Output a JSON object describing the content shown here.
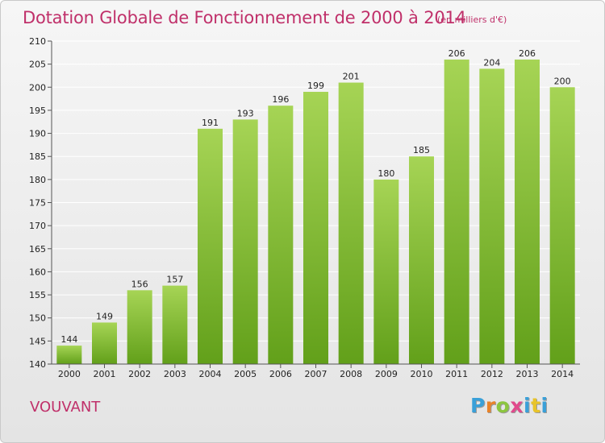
{
  "header": {
    "title": "Dotation Globale de Fonctionnement de 2000 à 2014",
    "unit": "(en milliers d'€)"
  },
  "footer": {
    "commune": "VOUVANT",
    "logo_letters": [
      "P",
      "r",
      "o",
      "x",
      "i",
      "t",
      "i"
    ],
    "logo_colors": [
      "#3aa0d8",
      "#e8832a",
      "#8cc63f",
      "#e14a8c",
      "#3aa0d8",
      "#e8c42a",
      "#3aa0d8"
    ]
  },
  "colors": {
    "title": "#c0306a",
    "bar_light": "#a6d455",
    "bar_dark": "#62a01a",
    "grid": "#ffffff"
  },
  "chart_data": {
    "type": "bar",
    "title": "Dotation Globale de Fonctionnement de 2000 à 2014",
    "subtitle": "(en milliers d'€)",
    "categories": [
      "2000",
      "2001",
      "2002",
      "2003",
      "2004",
      "2005",
      "2006",
      "2007",
      "2008",
      "2009",
      "2010",
      "2011",
      "2012",
      "2013",
      "2014"
    ],
    "values": [
      144,
      149,
      156,
      157,
      191,
      193,
      196,
      199,
      201,
      180,
      185,
      206,
      204,
      206,
      200
    ],
    "ylim": [
      140,
      210
    ],
    "yticks": [
      140,
      145,
      150,
      155,
      160,
      165,
      170,
      175,
      180,
      185,
      190,
      195,
      200,
      205,
      210
    ],
    "grid": true,
    "legend": "none"
  }
}
